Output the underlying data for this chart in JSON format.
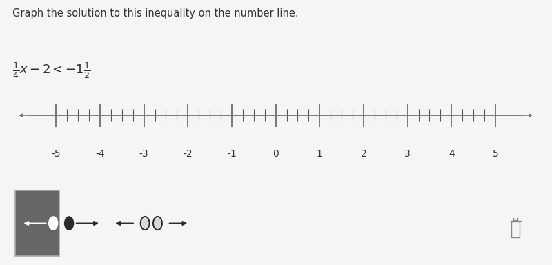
{
  "title_text": "Graph the solution to this inequality on the number line.",
  "inequality_latex": "$\\frac{1}{4}x - 2 < -1\\frac{1}{2}$",
  "number_line_min": -5,
  "number_line_max": 5,
  "tick_labels": [
    -5,
    -4,
    -3,
    -2,
    -1,
    0,
    1,
    2,
    3,
    4,
    5
  ],
  "minor_ticks_per_unit": 4,
  "bg_color": "#f5f5f5",
  "number_line_box_bg": "#ffffff",
  "number_line_box_border": "#cccccc",
  "title_fontsize": 10.5,
  "inequality_fontsize": 13,
  "tick_label_fontsize": 10,
  "toolbar_bg": "#d8d8d8",
  "toolbar_border": "#bbbbbb",
  "selected_bg": "#666666",
  "selected_border": "#888888",
  "icon_color_dark": "#2a2a2a",
  "icon_color_white": "#ffffff",
  "line_color": "#777777",
  "tick_color": "#555555",
  "arrow_icons": [
    {
      "type": "filled_left",
      "selected": true
    },
    {
      "type": "filled_right",
      "selected": false
    },
    {
      "type": "open_left",
      "selected": false
    },
    {
      "type": "open_right",
      "selected": false
    }
  ],
  "fig_width": 8.0,
  "fig_height": 3.84
}
